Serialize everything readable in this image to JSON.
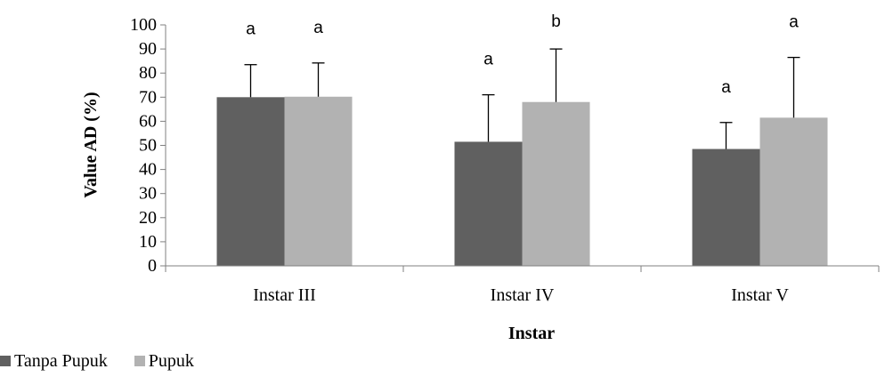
{
  "chart_data": {
    "type": "bar",
    "title": "",
    "xlabel": "Instar",
    "ylabel": "Value AD (%)",
    "ylim": [
      0,
      100
    ],
    "yticks": [
      0,
      10,
      20,
      30,
      40,
      50,
      60,
      70,
      80,
      90,
      100
    ],
    "grid": false,
    "legend_position": "bottom-left",
    "categories": [
      "Instar III",
      "Instar IV",
      "Instar V"
    ],
    "series": [
      {
        "name": "Tanpa Pupuk",
        "color": "#606060",
        "values": [
          70,
          51.5,
          48.5
        ],
        "error": [
          13.5,
          19.5,
          11
        ],
        "letters": [
          "a",
          "a",
          "a"
        ]
      },
      {
        "name": "Pupuk",
        "color": "#b2b2b2",
        "values": [
          70.2,
          68,
          61.5
        ],
        "error": [
          14,
          22,
          25
        ],
        "letters": [
          "a",
          "b",
          "a"
        ]
      }
    ]
  }
}
